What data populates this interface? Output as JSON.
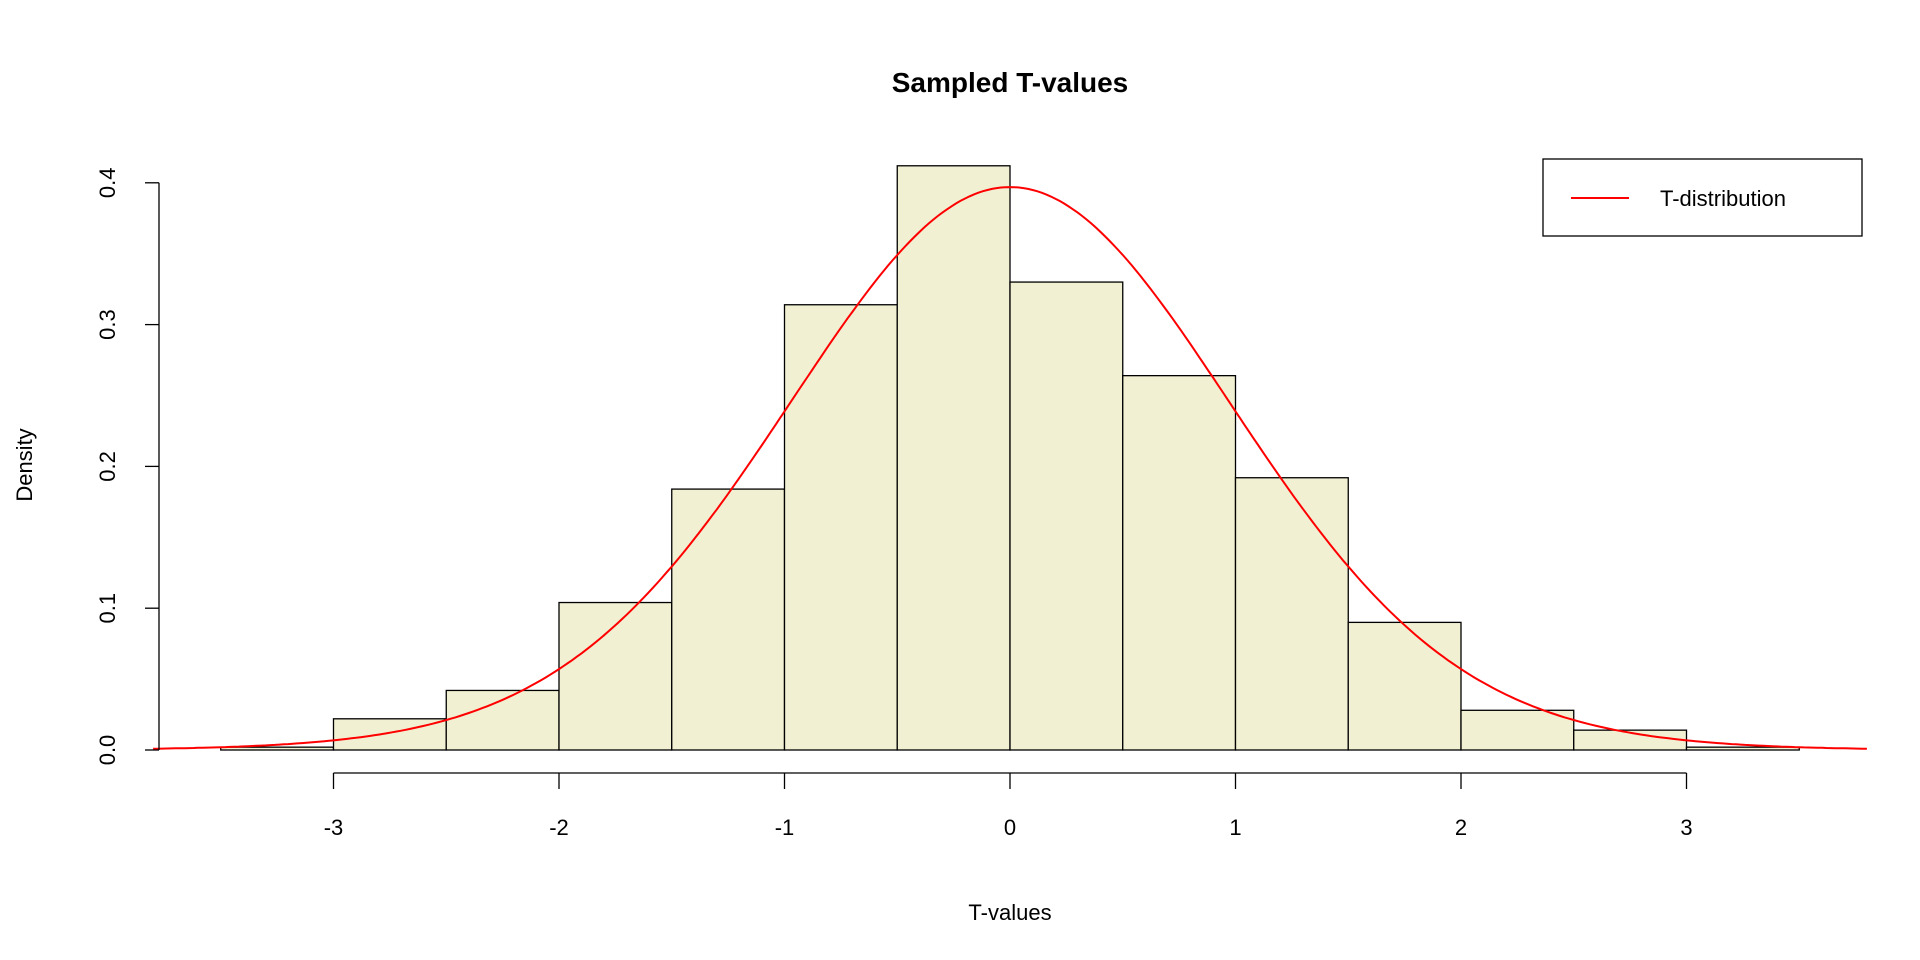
{
  "chart_data": {
    "type": "bar",
    "subtype": "histogram_with_density_curve",
    "title": "Sampled T-values",
    "xlabel": "T-values",
    "ylabel": "Density",
    "xlim": [
      -3.8,
      3.8
    ],
    "ylim": [
      0,
      0.4
    ],
    "x_ticks": [
      "-3",
      "-2",
      "-1",
      "0",
      "1",
      "2",
      "3"
    ],
    "y_ticks": [
      "0.0",
      "0.1",
      "0.2",
      "0.3",
      "0.4"
    ],
    "grid": false,
    "bin_edges": [
      -3.5,
      -3.0,
      -2.5,
      -2.0,
      -1.5,
      -1.0,
      -0.5,
      0.0,
      0.5,
      1.0,
      1.5,
      2.0,
      2.5,
      3.0,
      3.5
    ],
    "categories": [
      "-3.5 to -3.0",
      "-3.0 to -2.5",
      "-2.5 to -2.0",
      "-2.0 to -1.5",
      "-1.5 to -1.0",
      "-1.0 to -0.5",
      "-0.5 to 0.0",
      "0.0 to 0.5",
      "0.5 to 1.0",
      "1.0 to 1.5",
      "1.5 to 2.0",
      "2.0 to 2.5",
      "2.5 to 3.0",
      "3.0 to 3.5"
    ],
    "values": [
      0.002,
      0.022,
      0.042,
      0.104,
      0.184,
      0.314,
      0.412,
      0.33,
      0.264,
      0.192,
      0.09,
      0.028,
      0.014,
      0.002
    ],
    "bar_fill": "#f2f0d2",
    "bar_stroke": "#000000",
    "curve": {
      "name": "T-distribution",
      "color": "#ff0000",
      "peak_value": 0.397,
      "x_range": [
        -3.8,
        3.8
      ]
    },
    "legend": {
      "position": "top-right",
      "entries": [
        {
          "label": "T-distribution",
          "color": "#ff0000",
          "style": "line"
        }
      ]
    }
  }
}
